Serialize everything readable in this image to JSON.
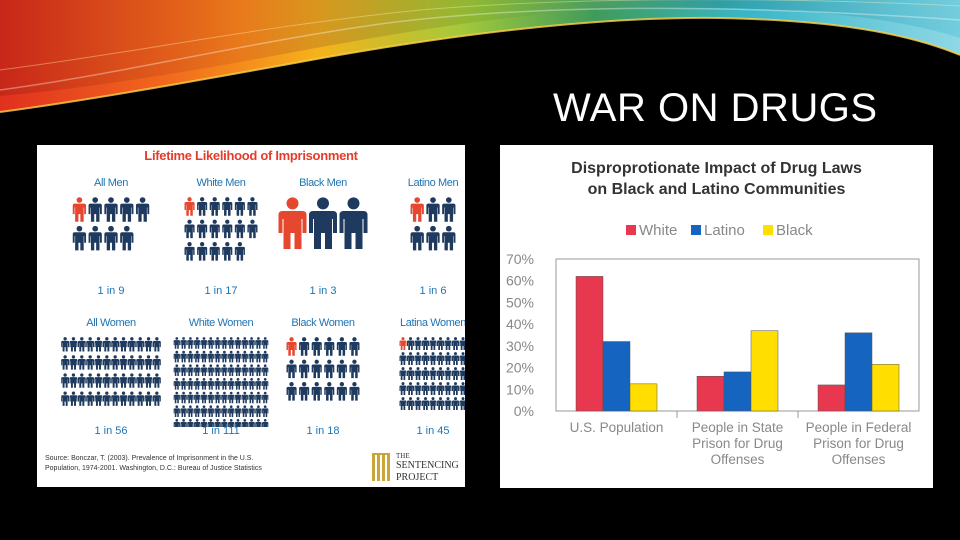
{
  "slide": {
    "title": "WAR ON DRUGS"
  },
  "infographic": {
    "title": "Lifetime Likelihood of Imprisonment",
    "panels": [
      {
        "label": "All Men",
        "ratio": "1 in 9"
      },
      {
        "label": "White Men",
        "ratio": "1 in 17"
      },
      {
        "label": "Black Men",
        "ratio": "1 in 3"
      },
      {
        "label": "Latino Men",
        "ratio": "1 in 6"
      },
      {
        "label": "All Women",
        "ratio": "1 in 56"
      },
      {
        "label": "White Women",
        "ratio": "1 in 111"
      },
      {
        "label": "Black Women",
        "ratio": "1 in 18"
      },
      {
        "label": "Latina Women",
        "ratio": "1 in 45"
      }
    ],
    "source_line1": "Source: Bonczar, T. (2003). Prevalence of Imprisonment in the U.S.",
    "source_line2": "Population, 1974-2001. Washington, D.C.: Bureau of Justice Statistics",
    "logo_the": "THE",
    "logo_sentencing": "SENTENCING",
    "logo_project": "PROJECT",
    "colors": {
      "highlight": "#e5472f",
      "figure": "#1f3a5f",
      "label": "#1e74b3"
    }
  },
  "chart_data": {
    "type": "bar",
    "title_line1": "Disproprotionate Impact of Drug Laws",
    "title_line2": "on Black and Latino Communities",
    "categories": [
      [
        "U.S. Population"
      ],
      [
        "People in State",
        "Prison for Drug",
        "Offenses"
      ],
      [
        "People in Federal",
        "Prison for Drug",
        "Offenses"
      ]
    ],
    "series": [
      {
        "name": "White",
        "color": "#e8384f",
        "values": [
          62,
          16,
          12
        ]
      },
      {
        "name": "Latino",
        "color": "#1565c0",
        "values": [
          32,
          18,
          36
        ]
      },
      {
        "name": "Black",
        "color": "#ffde00",
        "values": [
          12.5,
          37,
          21.5
        ]
      }
    ],
    "ylim": [
      0,
      70
    ],
    "yticks": [
      "0%",
      "10%",
      "20%",
      "30%",
      "40%",
      "50%",
      "60%",
      "70%"
    ],
    "legend_position": "top-center",
    "grid": false
  }
}
